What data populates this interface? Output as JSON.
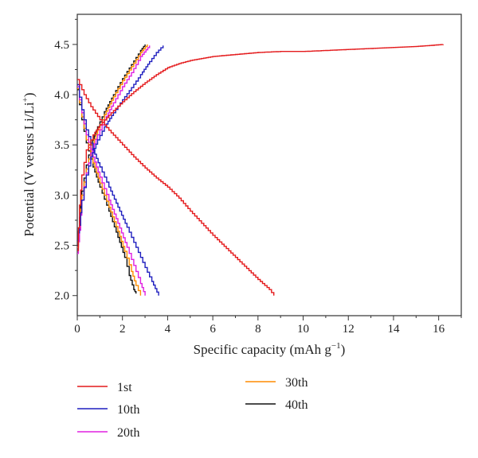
{
  "chart_data": {
    "type": "line",
    "xlabel": "Specific capacity (mAh g",
    "xlabel_sup": "−1",
    "xlabel_end": ")",
    "ylabel": "Potential (V versus Li/Li",
    "ylabel_sup": "+",
    "ylabel_end": ")",
    "xlim": [
      0,
      17
    ],
    "ylim": [
      1.8,
      4.8
    ],
    "x_ticks": [
      "0",
      "2",
      "4",
      "6",
      "8",
      "10",
      "12",
      "14",
      "16"
    ],
    "y_ticks": [
      "2.0",
      "2.5",
      "3.0",
      "3.5",
      "4.0",
      "4.5"
    ],
    "grid": false,
    "legend_position": "bottom",
    "series": [
      {
        "name": "1st",
        "color": "#e41a1c",
        "charge": [
          [
            0.0,
            2.45
          ],
          [
            0.1,
            2.9
          ],
          [
            0.2,
            3.2
          ],
          [
            0.4,
            3.45
          ],
          [
            0.7,
            3.6
          ],
          [
            1.0,
            3.7
          ],
          [
            1.5,
            3.82
          ],
          [
            2.0,
            3.93
          ],
          [
            2.5,
            4.03
          ],
          [
            3.0,
            4.12
          ],
          [
            3.5,
            4.2
          ],
          [
            4.0,
            4.27
          ],
          [
            4.5,
            4.31
          ],
          [
            5.0,
            4.34
          ],
          [
            6.0,
            4.38
          ],
          [
            7.0,
            4.4
          ],
          [
            8.0,
            4.42
          ],
          [
            9.0,
            4.43
          ],
          [
            10.0,
            4.43
          ],
          [
            11.0,
            4.44
          ],
          [
            12.0,
            4.45
          ],
          [
            13.0,
            4.46
          ],
          [
            14.0,
            4.47
          ],
          [
            15.0,
            4.48
          ],
          [
            16.2,
            4.5
          ]
        ],
        "discharge": [
          [
            0.0,
            4.15
          ],
          [
            0.3,
            4.0
          ],
          [
            0.6,
            3.88
          ],
          [
            1.0,
            3.75
          ],
          [
            1.5,
            3.62
          ],
          [
            2.0,
            3.5
          ],
          [
            2.5,
            3.38
          ],
          [
            3.0,
            3.27
          ],
          [
            3.5,
            3.17
          ],
          [
            4.0,
            3.08
          ],
          [
            4.5,
            2.97
          ],
          [
            5.0,
            2.84
          ],
          [
            5.5,
            2.72
          ],
          [
            6.0,
            2.6
          ],
          [
            6.5,
            2.49
          ],
          [
            7.0,
            2.38
          ],
          [
            7.5,
            2.27
          ],
          [
            8.0,
            2.16
          ],
          [
            8.5,
            2.06
          ],
          [
            8.7,
            2.0
          ]
        ]
      },
      {
        "name": "10th",
        "color": "#1f1fbf",
        "charge": [
          [
            0.0,
            2.55
          ],
          [
            0.1,
            2.7
          ],
          [
            0.2,
            2.95
          ],
          [
            0.4,
            3.2
          ],
          [
            0.6,
            3.38
          ],
          [
            0.9,
            3.55
          ],
          [
            1.2,
            3.68
          ],
          [
            1.6,
            3.82
          ],
          [
            2.0,
            3.95
          ],
          [
            2.4,
            4.07
          ],
          [
            2.8,
            4.2
          ],
          [
            3.2,
            4.33
          ],
          [
            3.5,
            4.42
          ],
          [
            3.8,
            4.49
          ]
        ],
        "discharge": [
          [
            0.0,
            4.1
          ],
          [
            0.2,
            3.85
          ],
          [
            0.4,
            3.65
          ],
          [
            0.7,
            3.45
          ],
          [
            1.0,
            3.28
          ],
          [
            1.4,
            3.08
          ],
          [
            1.8,
            2.88
          ],
          [
            2.2,
            2.68
          ],
          [
            2.6,
            2.48
          ],
          [
            3.0,
            2.28
          ],
          [
            3.3,
            2.14
          ],
          [
            3.6,
            2.0
          ]
        ]
      },
      {
        "name": "20th",
        "color": "#e020e0",
        "charge": [
          [
            0.0,
            2.42
          ],
          [
            0.1,
            2.65
          ],
          [
            0.2,
            2.95
          ],
          [
            0.4,
            3.22
          ],
          [
            0.6,
            3.42
          ],
          [
            0.9,
            3.6
          ],
          [
            1.2,
            3.75
          ],
          [
            1.6,
            3.92
          ],
          [
            2.0,
            4.08
          ],
          [
            2.4,
            4.22
          ],
          [
            2.8,
            4.38
          ],
          [
            3.2,
            4.49
          ]
        ],
        "discharge": [
          [
            0.0,
            4.08
          ],
          [
            0.2,
            3.82
          ],
          [
            0.4,
            3.6
          ],
          [
            0.7,
            3.38
          ],
          [
            1.0,
            3.18
          ],
          [
            1.4,
            2.95
          ],
          [
            1.8,
            2.72
          ],
          [
            2.2,
            2.48
          ],
          [
            2.5,
            2.3
          ],
          [
            2.8,
            2.12
          ],
          [
            3.0,
            2.0
          ]
        ]
      },
      {
        "name": "30th",
        "color": "#ff8c00",
        "charge": [
          [
            0.0,
            2.48
          ],
          [
            0.1,
            2.72
          ],
          [
            0.2,
            3.0
          ],
          [
            0.4,
            3.26
          ],
          [
            0.6,
            3.46
          ],
          [
            0.9,
            3.65
          ],
          [
            1.2,
            3.8
          ],
          [
            1.6,
            3.98
          ],
          [
            2.0,
            4.14
          ],
          [
            2.4,
            4.28
          ],
          [
            2.8,
            4.42
          ],
          [
            3.1,
            4.5
          ]
        ],
        "discharge": [
          [
            0.0,
            4.06
          ],
          [
            0.2,
            3.78
          ],
          [
            0.4,
            3.55
          ],
          [
            0.7,
            3.32
          ],
          [
            1.0,
            3.12
          ],
          [
            1.4,
            2.88
          ],
          [
            1.8,
            2.64
          ],
          [
            2.1,
            2.44
          ],
          [
            2.4,
            2.24
          ],
          [
            2.6,
            2.1
          ],
          [
            2.8,
            2.0
          ]
        ]
      },
      {
        "name": "40th",
        "color": "#111111",
        "charge": [
          [
            0.0,
            2.5
          ],
          [
            0.1,
            2.78
          ],
          [
            0.2,
            3.04
          ],
          [
            0.4,
            3.3
          ],
          [
            0.6,
            3.5
          ],
          [
            0.9,
            3.68
          ],
          [
            1.2,
            3.83
          ],
          [
            1.6,
            4.0
          ],
          [
            2.0,
            4.16
          ],
          [
            2.4,
            4.3
          ],
          [
            2.8,
            4.44
          ],
          [
            3.0,
            4.5
          ]
        ],
        "discharge": [
          [
            0.0,
            4.05
          ],
          [
            0.2,
            3.75
          ],
          [
            0.4,
            3.52
          ],
          [
            0.7,
            3.28
          ],
          [
            1.0,
            3.08
          ],
          [
            1.4,
            2.84
          ],
          [
            1.8,
            2.58
          ],
          [
            2.1,
            2.38
          ],
          [
            2.3,
            2.2
          ],
          [
            2.5,
            2.06
          ],
          [
            2.6,
            2.02
          ]
        ]
      }
    ]
  }
}
